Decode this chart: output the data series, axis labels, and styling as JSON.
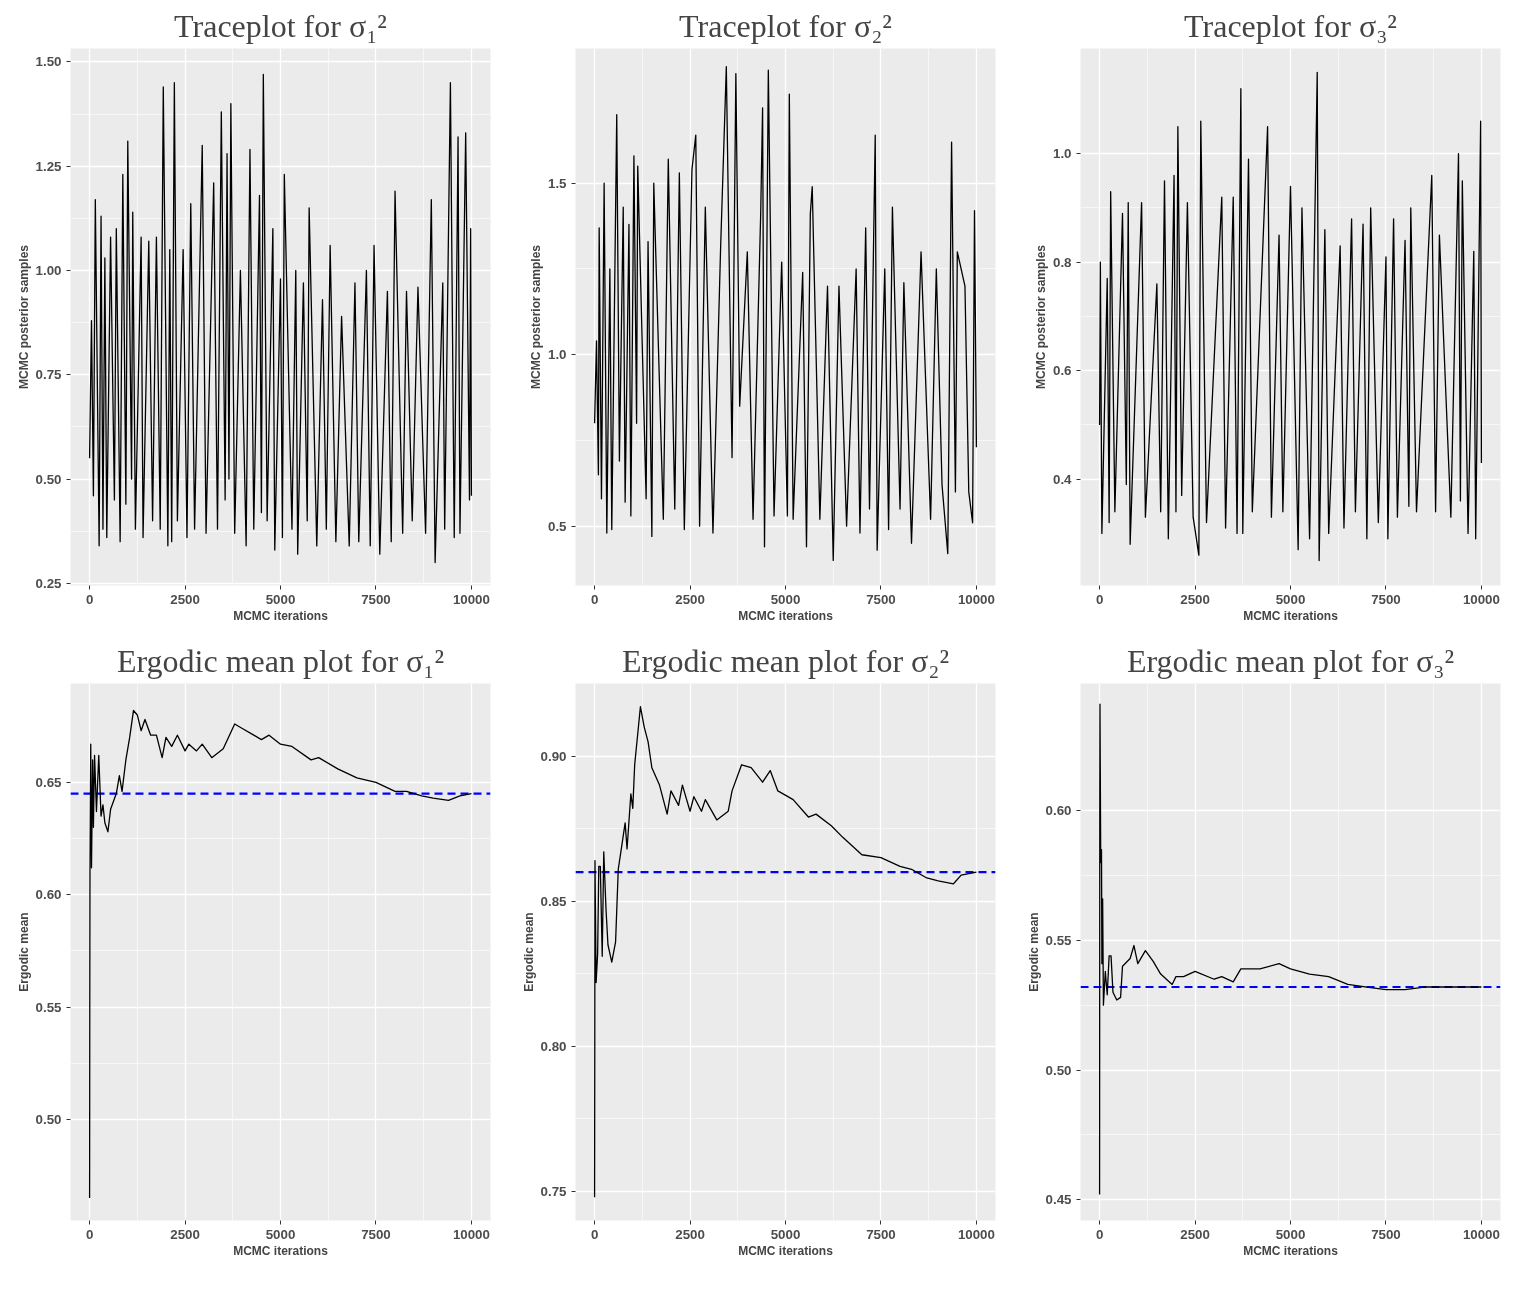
{
  "chart_data": [
    {
      "type": "line",
      "title": "Traceplot for σ₁²",
      "xlabel": "MCMC iterations",
      "ylabel": "MCMC posterior samples",
      "grid": true,
      "xlim": [
        -500,
        10500
      ],
      "ylim": [
        0.245,
        1.532
      ],
      "xticks": [
        0,
        2500,
        5000,
        7500,
        10000
      ],
      "yticks": [
        {
          "value": 0.25,
          "label": "0.25"
        },
        {
          "value": 0.5,
          "label": "0.50"
        },
        {
          "value": 0.75,
          "label": "0.75"
        },
        {
          "value": 1.0,
          "label": "1.00"
        },
        {
          "value": 1.25,
          "label": "1.25"
        },
        {
          "value": 1.5,
          "label": "1.50"
        }
      ],
      "x": [
        0,
        50,
        100,
        150,
        250,
        300,
        350,
        400,
        450,
        550,
        650,
        700,
        800,
        870,
        950,
        1000,
        1100,
        1130,
        1200,
        1350,
        1400,
        1550,
        1650,
        1750,
        1850,
        1930,
        2050,
        2100,
        2150,
        2220,
        2300,
        2450,
        2550,
        2650,
        2750,
        2950,
        3050,
        3250,
        3350,
        3450,
        3550,
        3600,
        3650,
        3700,
        3800,
        3950,
        4100,
        4200,
        4300,
        4450,
        4500,
        4550,
        4650,
        4800,
        4850,
        5000,
        5050,
        5100,
        5300,
        5400,
        5450,
        5600,
        5700,
        5750,
        5950,
        6100,
        6200,
        6300,
        6450,
        6600,
        6800,
        6950,
        7050,
        7250,
        7350,
        7450,
        7600,
        7800,
        7900,
        8000,
        8200,
        8300,
        8450,
        8600,
        8800,
        8950,
        9050,
        9250,
        9300,
        9450,
        9550,
        9650,
        9700,
        9850,
        9950,
        9980,
        10000
      ],
      "series": [
        {
          "color": "#000000",
          "values": [
            0.55,
            0.88,
            0.46,
            1.17,
            0.34,
            1.13,
            0.38,
            1.03,
            0.36,
            1.08,
            0.45,
            1.1,
            0.35,
            1.23,
            0.44,
            1.31,
            0.5,
            1.14,
            0.38,
            1.08,
            0.36,
            1.07,
            0.4,
            1.08,
            0.38,
            1.44,
            0.34,
            1.05,
            0.35,
            1.45,
            0.4,
            1.05,
            0.36,
            1.16,
            0.38,
            1.3,
            0.37,
            1.21,
            0.38,
            1.38,
            0.45,
            1.28,
            0.5,
            1.4,
            0.37,
            1.0,
            0.34,
            1.29,
            0.38,
            1.18,
            0.42,
            1.47,
            0.4,
            1.1,
            0.33,
            0.98,
            0.36,
            1.23,
            0.38,
            1.0,
            0.32,
            0.97,
            0.4,
            1.15,
            0.34,
            0.93,
            0.38,
            1.06,
            0.35,
            0.89,
            0.34,
            0.97,
            0.35,
            1.0,
            0.34,
            1.06,
            0.32,
            0.95,
            0.35,
            1.19,
            0.37,
            0.95,
            0.4,
            0.96,
            0.37,
            1.17,
            0.3,
            0.97,
            0.38,
            1.45,
            0.36,
            1.32,
            0.37,
            1.33,
            0.45,
            1.1,
            0.46
          ]
        }
      ]
    },
    {
      "type": "line",
      "title": "Traceplot for σ₂²",
      "xlabel": "MCMC iterations",
      "ylabel": "MCMC posterior samples",
      "grid": true,
      "xlim": [
        -500,
        10500
      ],
      "ylim": [
        0.327,
        1.893
      ],
      "xticks": [
        0,
        2500,
        5000,
        7500,
        10000
      ],
      "yticks": [
        0.5,
        {
          "value": 1.0,
          "label": "1.0"
        },
        1.5
      ],
      "x": [
        0,
        50,
        100,
        120,
        180,
        250,
        320,
        400,
        450,
        580,
        650,
        750,
        800,
        900,
        950,
        1030,
        1100,
        1130,
        1350,
        1400,
        1500,
        1550,
        1800,
        1930,
        2100,
        2220,
        2350,
        2550,
        2650,
        2750,
        2900,
        3100,
        3300,
        3450,
        3600,
        3700,
        3800,
        4000,
        4150,
        4350,
        4400,
        4450,
        4550,
        4700,
        4900,
        5050,
        5100,
        5200,
        5450,
        5550,
        5650,
        5700,
        5900,
        6100,
        6250,
        6400,
        6600,
        6850,
        6950,
        7100,
        7200,
        7350,
        7400,
        7600,
        7700,
        7800,
        8000,
        8100,
        8300,
        8550,
        8800,
        8950,
        9100,
        9250,
        9350,
        9450,
        9500,
        9700,
        9800,
        9900,
        9950,
        10000
      ],
      "series": [
        {
          "color": "#000000",
          "values": [
            0.8,
            1.04,
            0.65,
            1.37,
            0.58,
            1.5,
            0.48,
            1.25,
            0.49,
            1.7,
            0.69,
            1.43,
            0.57,
            1.38,
            0.53,
            1.58,
            0.8,
            1.55,
            0.58,
            1.33,
            0.47,
            1.5,
            0.52,
            1.57,
            0.55,
            1.53,
            0.49,
            1.54,
            1.64,
            0.5,
            1.43,
            0.48,
            1.31,
            1.84,
            0.7,
            1.82,
            0.85,
            1.3,
            0.52,
            1.41,
            1.72,
            0.44,
            1.83,
            0.53,
            1.27,
            0.53,
            1.76,
            0.52,
            1.24,
            0.44,
            1.41,
            1.49,
            0.52,
            1.2,
            0.4,
            1.2,
            0.5,
            1.25,
            0.48,
            1.37,
            0.55,
            1.64,
            0.43,
            1.25,
            0.49,
            1.43,
            0.55,
            1.21,
            0.45,
            1.3,
            0.52,
            1.25,
            0.62,
            0.42,
            1.62,
            0.6,
            1.3,
            1.2,
            0.6,
            0.51,
            1.42,
            0.73
          ]
        }
      ]
    },
    {
      "type": "line",
      "title": "Traceplot for σ₃²",
      "xlabel": "MCMC iterations",
      "ylabel": "MCMC posterior samples",
      "grid": true,
      "xlim": [
        -500,
        10500
      ],
      "ylim": [
        0.204,
        1.194
      ],
      "xticks": [
        0,
        2500,
        5000,
        7500,
        10000
      ],
      "yticks": [
        0.4,
        0.6,
        0.8,
        {
          "value": 1.0,
          "label": "1.0"
        }
      ],
      "x": [
        0,
        20,
        60,
        200,
        250,
        290,
        400,
        600,
        700,
        750,
        800,
        1100,
        1200,
        1500,
        1600,
        1700,
        1800,
        1950,
        2000,
        2050,
        2150,
        2300,
        2450,
        2600,
        2650,
        2800,
        3200,
        3300,
        3500,
        3600,
        3700,
        3750,
        3900,
        4000,
        4400,
        4500,
        4700,
        4800,
        5000,
        5200,
        5300,
        5500,
        5700,
        5750,
        5900,
        6000,
        6300,
        6400,
        6600,
        6700,
        6900,
        7000,
        7100,
        7300,
        7500,
        7550,
        7700,
        7800,
        8000,
        8100,
        8150,
        8300,
        8700,
        8800,
        8900,
        9200,
        9400,
        9450,
        9500,
        9650,
        9800,
        9850,
        9980,
        10000
      ],
      "series": [
        {
          "color": "#000000",
          "values": [
            0.5,
            0.8,
            0.3,
            0.77,
            0.32,
            0.93,
            0.34,
            0.89,
            0.39,
            0.91,
            0.28,
            0.91,
            0.33,
            0.76,
            0.34,
            0.95,
            0.29,
            0.96,
            0.34,
            1.05,
            0.37,
            0.91,
            0.33,
            0.26,
            1.06,
            0.32,
            0.92,
            0.31,
            0.92,
            0.3,
            1.12,
            0.3,
            0.99,
            0.34,
            1.05,
            0.33,
            0.85,
            0.34,
            0.94,
            0.27,
            0.9,
            0.29,
            1.15,
            0.25,
            0.86,
            0.3,
            0.83,
            0.31,
            0.88,
            0.34,
            0.87,
            0.29,
            0.9,
            0.32,
            0.81,
            0.29,
            0.88,
            0.33,
            0.84,
            0.35,
            0.9,
            0.34,
            0.96,
            0.34,
            0.85,
            0.33,
            1.0,
            0.36,
            0.95,
            0.3,
            0.82,
            0.29,
            1.06,
            0.43
          ]
        }
      ]
    },
    {
      "type": "line",
      "title": "Ergodic mean plot for σ₁²",
      "xlabel": "MCMC iterations",
      "ylabel": "Ergodic mean",
      "grid": true,
      "xlim": [
        -500,
        10500
      ],
      "ylim": [
        0.455,
        0.694
      ],
      "xticks": [
        0,
        2500,
        5000,
        7500,
        10000
      ],
      "yticks": [
        {
          "value": 0.5,
          "label": "0.50"
        },
        0.55,
        {
          "value": 0.6,
          "label": "0.60"
        },
        0.65
      ],
      "ref_lines": [
        {
          "axis": "y",
          "value": 0.645,
          "color": "#0000ff",
          "line_style": "dashed"
        }
      ],
      "x": [
        0,
        5,
        10,
        30,
        50,
        80,
        100,
        130,
        180,
        240,
        300,
        350,
        400,
        480,
        550,
        700,
        780,
        850,
        950,
        1050,
        1150,
        1250,
        1350,
        1450,
        1600,
        1750,
        1900,
        2000,
        2150,
        2300,
        2500,
        2600,
        2800,
        2950,
        3200,
        3500,
        3800,
        4000,
        4300,
        4500,
        4700,
        5000,
        5300,
        5800,
        6000,
        6500,
        7000,
        7500,
        8000,
        8300,
        8700,
        9000,
        9400,
        9700,
        10000
      ],
      "series": [
        {
          "color": "#000000",
          "values": [
            0.465,
            0.548,
            0.61,
            0.667,
            0.612,
            0.66,
            0.63,
            0.662,
            0.637,
            0.662,
            0.635,
            0.64,
            0.632,
            0.628,
            0.638,
            0.645,
            0.653,
            0.646,
            0.66,
            0.67,
            0.682,
            0.68,
            0.673,
            0.678,
            0.671,
            0.671,
            0.661,
            0.67,
            0.666,
            0.671,
            0.664,
            0.667,
            0.664,
            0.667,
            0.661,
            0.665,
            0.676,
            0.674,
            0.671,
            0.669,
            0.671,
            0.667,
            0.666,
            0.66,
            0.661,
            0.656,
            0.652,
            0.65,
            0.646,
            0.646,
            0.644,
            0.643,
            0.642,
            0.644,
            0.645
          ]
        }
      ]
    },
    {
      "type": "line",
      "title": "Ergodic mean plot for σ₂²",
      "xlabel": "MCMC iterations",
      "ylabel": "Ergodic mean",
      "grid": true,
      "xlim": [
        -500,
        10500
      ],
      "ylim": [
        0.74,
        0.925
      ],
      "xticks": [
        0,
        2500,
        5000,
        7500,
        10000
      ],
      "yticks": [
        0.75,
        {
          "value": 0.8,
          "label": "0.80"
        },
        0.85,
        {
          "value": 0.9,
          "label": "0.90"
        }
      ],
      "ref_lines": [
        {
          "axis": "y",
          "value": 0.86,
          "color": "#0000ff",
          "line_style": "dashed"
        }
      ],
      "x": [
        0,
        5,
        10,
        40,
        80,
        110,
        150,
        200,
        240,
        300,
        350,
        450,
        550,
        620,
        700,
        800,
        850,
        950,
        1000,
        1050,
        1200,
        1300,
        1400,
        1500,
        1700,
        1900,
        2000,
        2200,
        2300,
        2500,
        2600,
        2800,
        2900,
        3200,
        3500,
        3600,
        3850,
        4100,
        4400,
        4600,
        4800,
        5200,
        5600,
        5800,
        6200,
        6500,
        7000,
        7500,
        8000,
        8300,
        8700,
        9000,
        9400,
        9600,
        10000
      ],
      "series": [
        {
          "color": "#000000",
          "values": [
            0.748,
            0.8,
            0.864,
            0.822,
            0.832,
            0.862,
            0.862,
            0.831,
            0.867,
            0.847,
            0.835,
            0.829,
            0.836,
            0.861,
            0.868,
            0.877,
            0.868,
            0.887,
            0.882,
            0.897,
            0.917,
            0.91,
            0.905,
            0.896,
            0.89,
            0.88,
            0.888,
            0.883,
            0.89,
            0.881,
            0.886,
            0.881,
            0.885,
            0.878,
            0.881,
            0.888,
            0.897,
            0.896,
            0.891,
            0.895,
            0.888,
            0.885,
            0.879,
            0.88,
            0.876,
            0.872,
            0.866,
            0.865,
            0.862,
            0.861,
            0.858,
            0.857,
            0.856,
            0.859,
            0.86
          ]
        }
      ]
    },
    {
      "type": "line",
      "title": "Ergodic mean plot for σ₃²",
      "xlabel": "MCMC iterations",
      "ylabel": "Ergodic mean",
      "grid": true,
      "xlim": [
        -500,
        10500
      ],
      "ylim": [
        0.442,
        0.649
      ],
      "xticks": [
        0,
        2500,
        5000,
        7500,
        10000
      ],
      "yticks": [
        0.45,
        {
          "value": 0.5,
          "label": "0.50"
        },
        0.55,
        {
          "value": 0.6,
          "label": "0.60"
        }
      ],
      "ref_lines": [
        {
          "axis": "y",
          "value": 0.532,
          "color": "#0000ff",
          "line_style": "dashed"
        }
      ],
      "x": [
        0,
        5,
        10,
        30,
        50,
        60,
        80,
        100,
        150,
        200,
        250,
        300,
        350,
        450,
        550,
        600,
        800,
        900,
        1000,
        1200,
        1400,
        1600,
        1900,
        2000,
        2200,
        2500,
        3000,
        3200,
        3500,
        3700,
        4200,
        4700,
        5000,
        5500,
        6000,
        6500,
        7000,
        7500,
        8000,
        8500,
        9000,
        9500,
        10000
      ],
      "series": [
        {
          "color": "#000000",
          "values": [
            0.452,
            0.6,
            0.641,
            0.58,
            0.585,
            0.541,
            0.566,
            0.525,
            0.538,
            0.529,
            0.544,
            0.544,
            0.53,
            0.527,
            0.528,
            0.54,
            0.543,
            0.548,
            0.541,
            0.546,
            0.542,
            0.537,
            0.533,
            0.536,
            0.536,
            0.538,
            0.535,
            0.536,
            0.534,
            0.539,
            0.539,
            0.541,
            0.539,
            0.537,
            0.536,
            0.533,
            0.532,
            0.531,
            0.531,
            0.532,
            0.532,
            0.532,
            0.532
          ]
        }
      ]
    }
  ]
}
